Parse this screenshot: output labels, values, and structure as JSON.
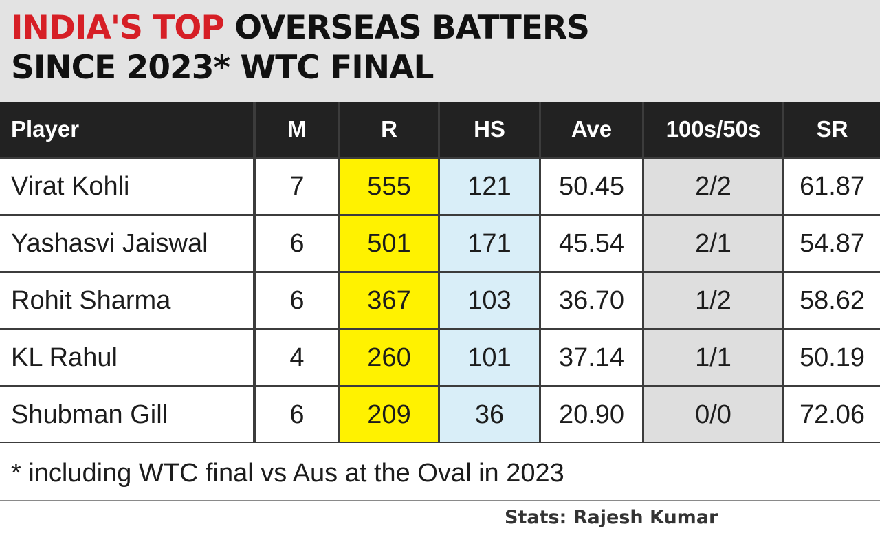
{
  "title": {
    "highlight": "INDIA'S TOP",
    "rest": "OVERSEAS BATTERS",
    "line2": "SINCE 2023* WTC FINAL"
  },
  "colors": {
    "highlight_red": "#d61f26",
    "runs_column": "#fff200",
    "hs_column": "#d9eef8",
    "hundreds_column": "#dedede",
    "header_bg": "#222222"
  },
  "chart_data": {
    "type": "table",
    "columns": [
      "Player",
      "M",
      "R",
      "HS",
      "Ave",
      "100s/50s",
      "SR"
    ],
    "rows": [
      [
        "Virat Kohli",
        "7",
        "555",
        "121",
        "50.45",
        "2/2",
        "61.87"
      ],
      [
        "Yashasvi Jaiswal",
        "6",
        "501",
        "171",
        "45.54",
        "2/1",
        "54.87"
      ],
      [
        "Rohit Sharma",
        "6",
        "367",
        "103",
        "36.70",
        "1/2",
        "58.62"
      ],
      [
        "KL Rahul",
        "4",
        "260",
        "101",
        "37.14",
        "1/1",
        "50.19"
      ],
      [
        "Shubman Gill",
        "6",
        "209",
        "36",
        "20.90",
        "0/0",
        "72.06"
      ]
    ]
  },
  "footnote": "* including WTC final vs Aus at the Oval in 2023",
  "credit": "Stats: Rajesh Kumar"
}
